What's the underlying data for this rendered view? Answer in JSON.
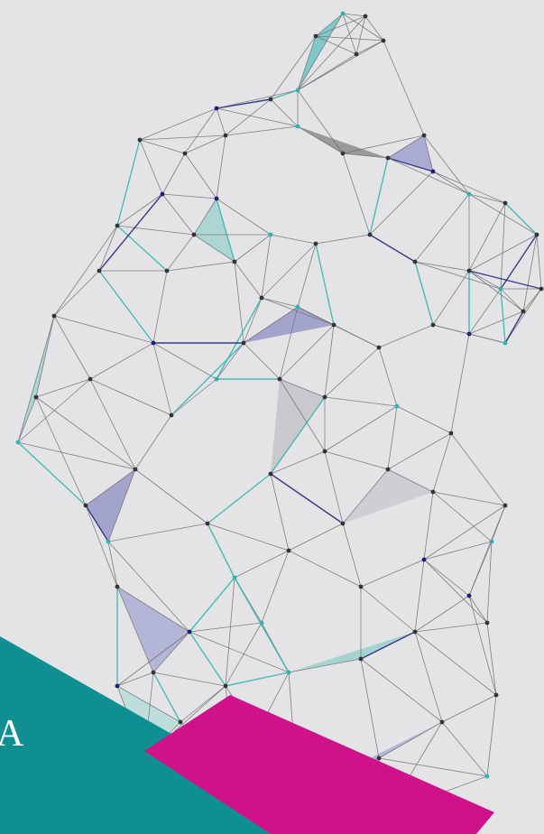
{
  "banner": {
    "text": "A"
  }
}
